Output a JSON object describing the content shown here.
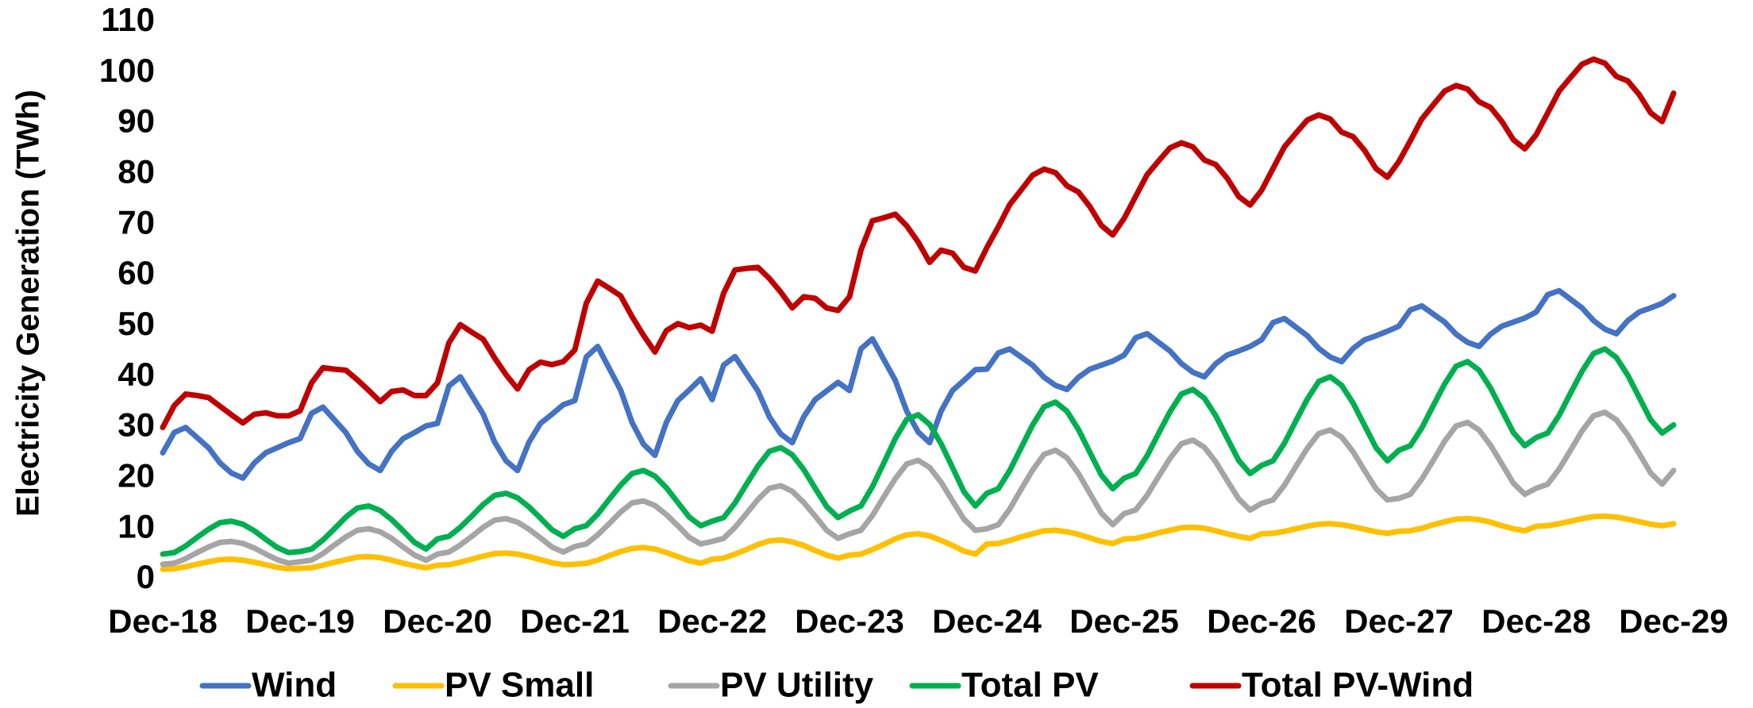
{
  "chart_data": {
    "type": "line",
    "y_label": "Electricity Generation (TWh)",
    "categories": [
      "Dec-18",
      null,
      null,
      null,
      null,
      null,
      null,
      null,
      null,
      null,
      null,
      null,
      "Dec-19",
      null,
      null,
      null,
      null,
      null,
      null,
      null,
      null,
      null,
      null,
      null,
      "Dec-20",
      null,
      null,
      null,
      null,
      null,
      null,
      null,
      null,
      null,
      null,
      null,
      "Dec-21",
      null,
      null,
      null,
      null,
      null,
      null,
      null,
      null,
      null,
      null,
      null,
      "Dec-22",
      null,
      null,
      null,
      null,
      null,
      null,
      null,
      null,
      null,
      null,
      null,
      "Dec-23",
      null,
      null,
      null,
      null,
      null,
      null,
      null,
      null,
      null,
      null,
      null,
      "Dec-24",
      null,
      null,
      null,
      null,
      null,
      null,
      null,
      null,
      null,
      null,
      null,
      "Dec-25",
      null,
      null,
      null,
      null,
      null,
      null,
      null,
      null,
      null,
      null,
      null,
      "Dec-26",
      null,
      null,
      null,
      null,
      null,
      null,
      null,
      null,
      null,
      null,
      null,
      "Dec-27",
      null,
      null,
      null,
      null,
      null,
      null,
      null,
      null,
      null,
      null,
      null,
      "Dec-28",
      null,
      null,
      null,
      null,
      null,
      null,
      null,
      null,
      null,
      null,
      null,
      "Dec-29"
    ],
    "ylim": [
      0,
      110
    ],
    "yticks": [
      0,
      10,
      20,
      30,
      40,
      50,
      60,
      70,
      80,
      90,
      100,
      110
    ],
    "legend": "bottom",
    "series": [
      {
        "name": "Wind",
        "color": "#4472c4",
        "values": [
          25,
          29,
          30,
          28,
          26,
          23,
          21,
          20,
          23,
          25,
          26,
          27,
          27.8,
          32.8,
          34,
          31.5,
          29,
          25.3,
          22.8,
          21.5,
          25.3,
          27.8,
          29,
          30.3,
          30.8,
          38.2,
          40,
          36.3,
          32.6,
          27.1,
          23.4,
          21.5,
          27.1,
          30.8,
          32.6,
          34.5,
          35.3,
          43.9,
          46,
          41.7,
          37.4,
          31,
          26.7,
          24.5,
          31,
          35.3,
          37.4,
          39.6,
          35.5,
          42.3,
          44,
          40.6,
          37.2,
          32.1,
          28.7,
          27,
          32.1,
          35.5,
          37.2,
          38.9,
          37.3,
          45.5,
          47.5,
          43.4,
          39.3,
          33.2,
          29.1,
          27,
          33.2,
          37.3,
          39.3,
          41.4,
          41.5,
          44.7,
          45.5,
          43.9,
          42.3,
          39.9,
          38.3,
          37.5,
          39.9,
          41.5,
          42.3,
          43.1,
          44.3,
          47.7,
          48.5,
          46.8,
          45.1,
          42.6,
          40.9,
          40,
          42.6,
          44.3,
          45.1,
          46,
          47.3,
          50.7,
          51.5,
          49.8,
          48.1,
          45.6,
          43.9,
          43,
          45.6,
          47.3,
          48.1,
          49,
          50,
          53.2,
          54,
          52.4,
          50.8,
          48.4,
          46.8,
          46,
          48.4,
          50,
          50.8,
          51.6,
          52.8,
          56.2,
          57,
          55.3,
          53.6,
          51.1,
          49.4,
          48.5,
          51.1,
          52.8,
          53.6,
          54.5,
          56
        ]
      },
      {
        "name": "PV Small",
        "color": "#ffc000",
        "values": [
          2,
          2.1,
          2.5,
          3,
          3.5,
          3.9,
          4,
          3.8,
          3.4,
          2.9,
          2.4,
          2.1,
          2.2,
          2.3,
          2.8,
          3.4,
          3.9,
          4.4,
          4.5,
          4.3,
          3.8,
          3.2,
          2.7,
          2.3,
          2.8,
          2.9,
          3.4,
          4,
          4.6,
          5.1,
          5.2,
          5,
          4.5,
          3.9,
          3.3,
          2.9,
          3,
          3.2,
          3.8,
          4.7,
          5.5,
          6.1,
          6.3,
          6,
          5.3,
          4.5,
          3.7,
          3.2,
          4,
          4.2,
          5,
          5.9,
          6.9,
          7.6,
          7.8,
          7.4,
          6.7,
          5.7,
          4.8,
          4.2,
          4.8,
          5,
          5.9,
          6.9,
          8,
          8.8,
          9,
          8.6,
          7.7,
          6.7,
          5.6,
          5,
          7,
          7.1,
          7.7,
          8.4,
          9,
          9.6,
          9.7,
          9.4,
          8.9,
          8.2,
          7.5,
          7.1,
          8,
          8.1,
          8.6,
          9.2,
          9.7,
          10.2,
          10.3,
          10.1,
          9.6,
          9,
          8.5,
          8.1,
          9,
          9.1,
          9.5,
          10,
          10.5,
          10.9,
          11,
          10.8,
          10.4,
          9.9,
          9.4,
          9.1,
          9.5,
          9.6,
          10.1,
          10.8,
          11.4,
          11.9,
          12,
          11.8,
          11.3,
          10.6,
          10,
          9.6,
          10.5,
          10.6,
          11,
          11.5,
          12,
          12.4,
          12.5,
          12.3,
          11.9,
          11.4,
          10.9,
          10.6,
          11
        ]
      },
      {
        "name": "PV Utility",
        "color": "#a5a5a5",
        "values": [
          3,
          3.2,
          4.1,
          5.3,
          6.4,
          7.3,
          7.5,
          7.1,
          6.2,
          5,
          3.9,
          3.2,
          3.5,
          3.8,
          5.1,
          6.8,
          8.4,
          9.7,
          10,
          9.4,
          8.1,
          6.4,
          4.8,
          3.8,
          5,
          5.4,
          6.8,
          8.5,
          10.3,
          11.7,
          12,
          11.3,
          9.9,
          8.2,
          6.4,
          5.4,
          6.5,
          7,
          8.8,
          11,
          13.3,
          15.1,
          15.5,
          14.6,
          12.8,
          10.6,
          8.3,
          7,
          7.5,
          8.1,
          10.3,
          13,
          15.8,
          18,
          18.5,
          17.4,
          15.2,
          12.5,
          9.7,
          8.1,
          9,
          9.7,
          12.6,
          16.3,
          19.9,
          22.8,
          23.5,
          22.1,
          19.2,
          15.5,
          11.9,
          9.7,
          10,
          10.8,
          13.9,
          17.8,
          21.6,
          24.7,
          25.5,
          24,
          20.9,
          17,
          13.1,
          10.8,
          13,
          13.7,
          16.6,
          20.3,
          23.9,
          26.8,
          27.5,
          26.1,
          23.2,
          19.5,
          15.9,
          13.7,
          15,
          15.7,
          18.6,
          22.3,
          25.9,
          28.8,
          29.5,
          28.1,
          25.2,
          21.5,
          17.9,
          15.7,
          16,
          16.8,
          19.8,
          23.5,
          27.3,
          30.3,
          31,
          29.5,
          26.5,
          22.8,
          19,
          16.8,
          18,
          18.8,
          21.8,
          25.5,
          29.3,
          32.3,
          33,
          31.5,
          28.5,
          24.8,
          21,
          18.8,
          21.5
        ]
      },
      {
        "name": "Total PV",
        "color": "#00b050",
        "values": [
          5,
          5.3,
          6.6,
          8.3,
          9.9,
          11.2,
          11.5,
          10.9,
          9.6,
          7.9,
          6.3,
          5.3,
          5.5,
          6,
          7.8,
          10,
          12.3,
          14.1,
          14.5,
          13.6,
          11.8,
          9.6,
          7.3,
          6,
          8,
          8.5,
          10.3,
          12.5,
          14.8,
          16.6,
          17,
          16.1,
          14.3,
          12.1,
          9.8,
          8.5,
          10,
          10.6,
          12.9,
          15.8,
          18.6,
          20.9,
          21.5,
          20.4,
          18.1,
          15.2,
          12.3,
          10.6,
          11.5,
          12.2,
          15.1,
          18.8,
          22.4,
          25.3,
          26,
          24.6,
          21.7,
          18,
          14.4,
          12.2,
          13.5,
          14.5,
          18.3,
          23,
          27.8,
          31.6,
          32.5,
          30.6,
          26.8,
          22.1,
          17.3,
          14.5,
          17,
          17.9,
          21.5,
          26,
          30.5,
          34.1,
          35,
          33.2,
          29.6,
          25.1,
          20.6,
          17.9,
          20,
          20.9,
          24.4,
          28.8,
          33.1,
          36.6,
          37.5,
          35.8,
          32.3,
          27.9,
          23.5,
          20.9,
          22.5,
          23.4,
          26.9,
          31.3,
          35.6,
          39.1,
          40,
          38.3,
          34.8,
          30.4,
          26,
          23.4,
          25.5,
          26.4,
          29.9,
          34.3,
          38.6,
          42.1,
          43,
          41.3,
          37.8,
          33.4,
          29,
          26.4,
          28,
          28.9,
          32.4,
          36.8,
          41.1,
          44.6,
          45.5,
          43.8,
          40.3,
          35.9,
          31.5,
          28.9,
          30.5
        ]
      },
      {
        "name": "Total PV-Wind",
        "color": "#c00000",
        "values": [
          30,
          34.3,
          36.6,
          36.3,
          35.9,
          34.2,
          32.5,
          30.9,
          32.6,
          32.9,
          32.3,
          32.3,
          33.3,
          38.8,
          41.8,
          41.5,
          41.3,
          39.4,
          37.3,
          35.1,
          37.1,
          37.4,
          36.3,
          36.3,
          38.8,
          46.7,
          50.3,
          48.8,
          47.4,
          43.7,
          40.4,
          37.6,
          41.4,
          42.9,
          42.4,
          43,
          45.3,
          54.5,
          58.9,
          57.5,
          56,
          51.9,
          48.2,
          44.9,
          49.1,
          50.5,
          49.7,
          50.2,
          49,
          56.5,
          61.1,
          61.4,
          61.6,
          59.4,
          56.7,
          53.6,
          55.8,
          55.5,
          53.6,
          53.1,
          55.8,
          65,
          70.8,
          71.4,
          72.1,
          69.8,
          66.6,
          62.6,
          65,
          64.4,
          61.6,
          60.9,
          65.5,
          69.6,
          74,
          76.9,
          79.8,
          81,
          80.3,
          77.7,
          76.5,
          73.6,
          69.9,
          68,
          71.3,
          75.6,
          79.9,
          82.6,
          85.2,
          86.2,
          85.4,
          82.8,
          81.9,
          79.2,
          75.6,
          73.9,
          76.8,
          81.1,
          85.4,
          88.1,
          90.7,
          91.7,
          90.9,
          88.3,
          87.4,
          84.7,
          81.1,
          79.4,
          82.5,
          86.6,
          90.9,
          93.7,
          96.4,
          97.5,
          96.8,
          94.3,
          93.2,
          90.4,
          86.8,
          85,
          87.8,
          92.1,
          96.4,
          99.1,
          101.7,
          102.7,
          101.9,
          99.3,
          98.4,
          95.7,
          92.1,
          90.4,
          96
        ]
      }
    ]
  }
}
